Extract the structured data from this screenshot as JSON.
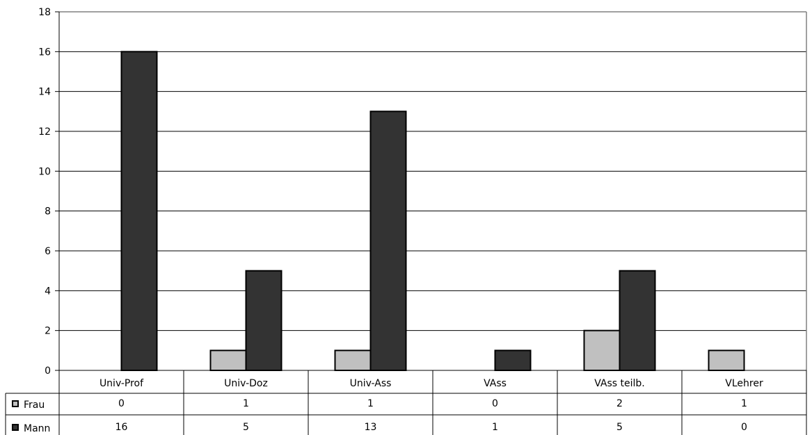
{
  "chart_data": {
    "type": "bar",
    "title": "",
    "xlabel": "",
    "ylabel": "",
    "ylim": [
      0,
      18
    ],
    "yticks": [
      0,
      2,
      4,
      6,
      8,
      10,
      12,
      14,
      16,
      18
    ],
    "grid": true,
    "legend": "data-table-left",
    "categories": [
      "Univ-Prof",
      "Univ-Doz",
      "Univ-Ass",
      "VAss",
      "VAss teilb.",
      "VLehrer"
    ],
    "series": [
      {
        "name": "Frau",
        "color": "#c0c0c0",
        "values": [
          0,
          1,
          1,
          0,
          2,
          1
        ]
      },
      {
        "name": "Mann",
        "color": "#333333",
        "values": [
          16,
          5,
          13,
          1,
          5,
          0
        ]
      }
    ]
  }
}
